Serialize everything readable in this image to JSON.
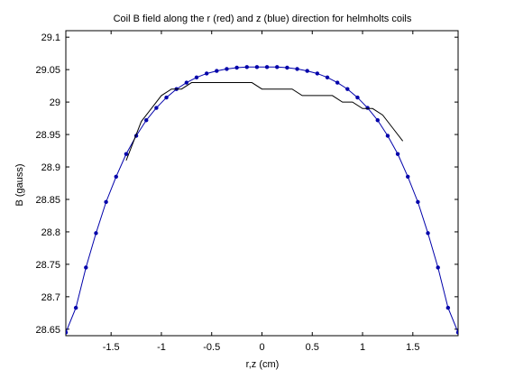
{
  "chart_data": {
    "type": "line",
    "title": "Coil B field along the r (red) and z (blue) direction for helmholts coils",
    "xlabel": "r,z (cm)",
    "ylabel": "B (gauss)",
    "xlim": [
      -1.95,
      1.95
    ],
    "ylim": [
      28.64,
      29.11
    ],
    "xticks": [
      -1.5,
      -1,
      -0.5,
      0,
      0.5,
      1,
      1.5
    ],
    "xtick_labels": [
      "-1.5",
      "-1",
      "-0.5",
      "0",
      "0.5",
      "1",
      "1.5"
    ],
    "yticks": [
      28.65,
      28.7,
      28.75,
      28.8,
      28.85,
      28.9,
      28.95,
      29.0,
      29.05,
      29.1
    ],
    "ytick_labels": [
      "28.65",
      "28.7",
      "28.75",
      "28.8",
      "28.85",
      "28.9",
      "28.95",
      "29",
      "29.05",
      "29.1"
    ],
    "grid": false,
    "series": [
      {
        "color": "#0000aa",
        "marker": "dot",
        "x": [
          -1.95,
          -1.85,
          -1.75,
          -1.65,
          -1.55,
          -1.45,
          -1.35,
          -1.25,
          -1.15,
          -1.05,
          -0.95,
          -0.85,
          -0.75,
          -0.65,
          -0.55,
          -0.45,
          -0.35,
          -0.25,
          -0.15,
          -0.05,
          0.05,
          0.15,
          0.25,
          0.35,
          0.45,
          0.55,
          0.65,
          0.75,
          0.85,
          0.95,
          1.05,
          1.15,
          1.25,
          1.35,
          1.45,
          1.55,
          1.65,
          1.75,
          1.85,
          1.95
        ],
        "y": [
          28.645,
          28.683,
          28.745,
          28.798,
          28.846,
          28.885,
          28.92,
          28.948,
          28.972,
          28.991,
          29.007,
          29.02,
          29.03,
          29.038,
          29.044,
          29.048,
          29.051,
          29.053,
          29.054,
          29.054,
          29.054,
          29.054,
          29.053,
          29.051,
          29.048,
          29.044,
          29.038,
          29.03,
          29.02,
          29.007,
          28.991,
          28.972,
          28.948,
          28.92,
          28.885,
          28.846,
          28.798,
          28.745,
          28.683,
          28.645
        ]
      },
      {
        "color": "#000000",
        "marker": "none",
        "x": [
          -1.35,
          -1.2,
          -1.1,
          -1.0,
          -0.9,
          -0.8,
          -0.7,
          -0.6,
          -0.5,
          -0.4,
          -0.3,
          -0.2,
          -0.1,
          0.0,
          0.1,
          0.2,
          0.3,
          0.4,
          0.5,
          0.6,
          0.7,
          0.8,
          0.9,
          1.0,
          1.1,
          1.2,
          1.3,
          1.4
        ],
        "y": [
          28.91,
          28.97,
          28.99,
          29.01,
          29.02,
          29.02,
          29.03,
          29.03,
          29.03,
          29.03,
          29.03,
          29.03,
          29.03,
          29.02,
          29.02,
          29.02,
          29.02,
          29.01,
          29.01,
          29.01,
          29.01,
          29.0,
          29.0,
          28.99,
          28.99,
          28.98,
          28.96,
          28.94
        ]
      }
    ]
  }
}
